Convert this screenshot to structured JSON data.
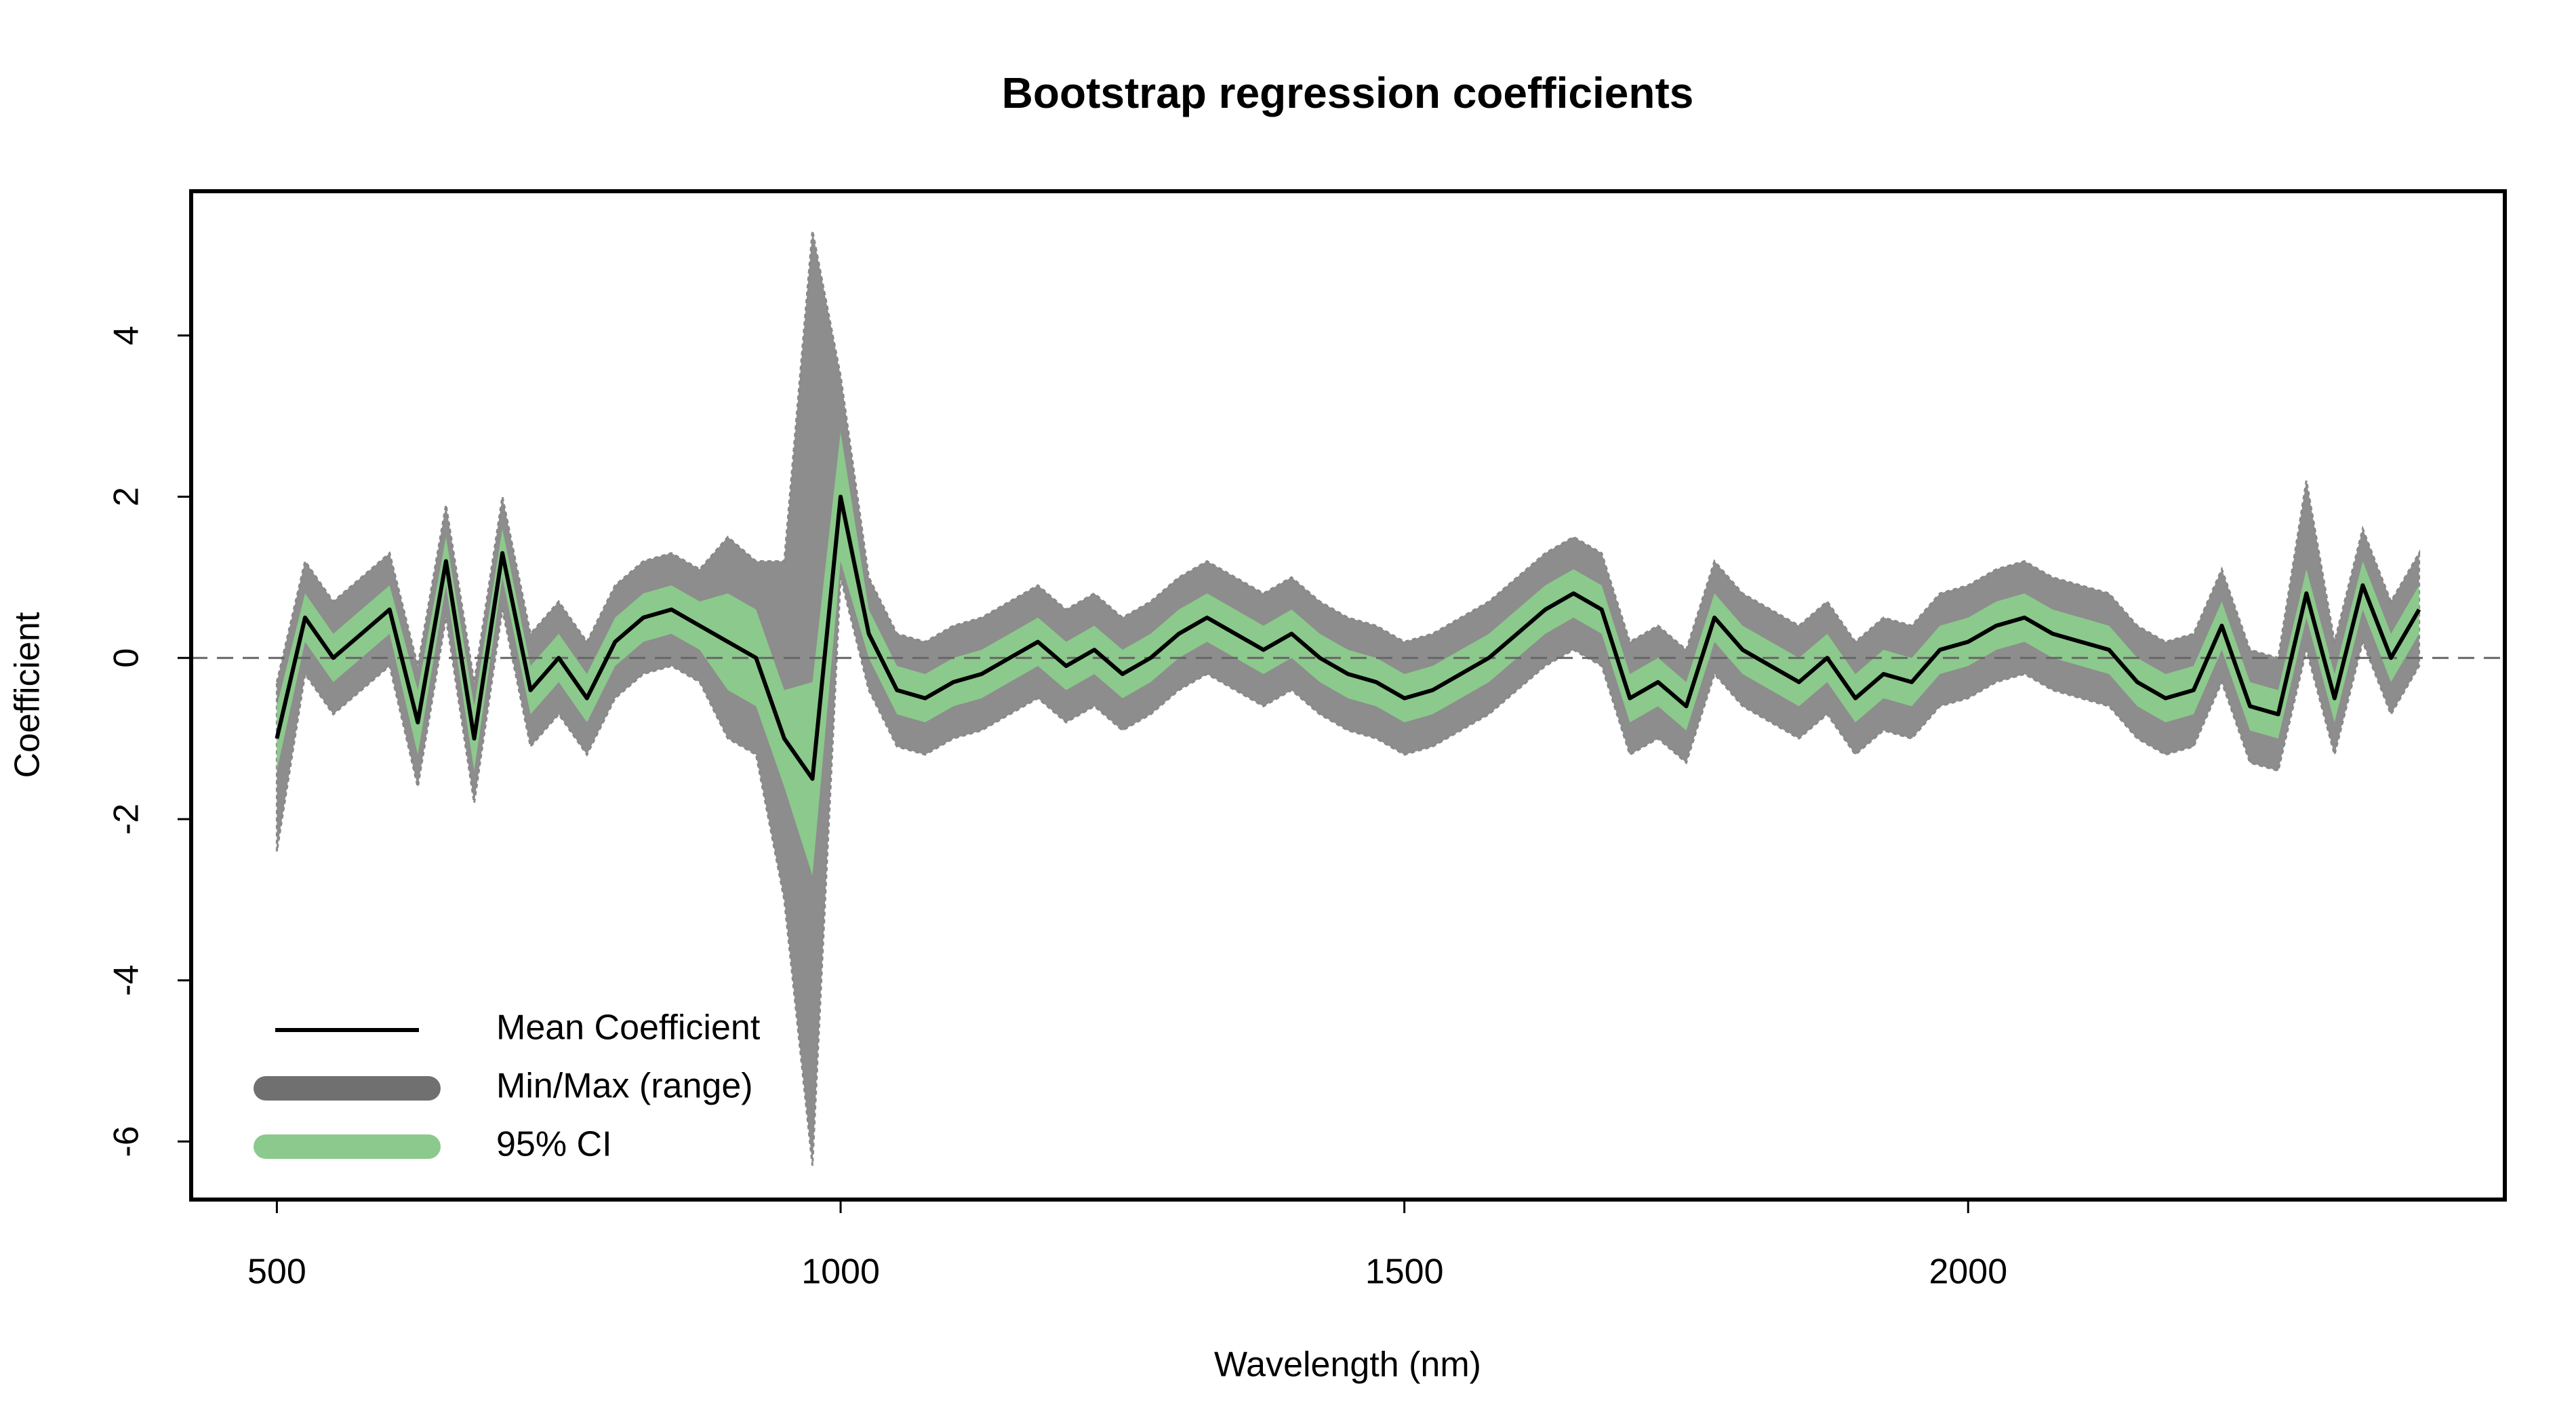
{
  "chart_data": {
    "type": "line",
    "title": "Bootstrap regression coefficients",
    "xlabel": "Wavelength (nm)",
    "ylabel": "Coefficient",
    "xlim": [
      424,
      2476
    ],
    "ylim": [
      -6.72,
      5.79
    ],
    "xticks": [
      500,
      1000,
      1500,
      2000
    ],
    "yticks": [
      -6,
      -4,
      -2,
      0,
      2,
      4
    ],
    "hline": 0,
    "legend": "bottomleft",
    "x": [
      500,
      525,
      550,
      575,
      600,
      625,
      650,
      675,
      700,
      725,
      750,
      775,
      800,
      825,
      850,
      875,
      900,
      925,
      950,
      975,
      1000,
      1025,
      1050,
      1075,
      1100,
      1125,
      1150,
      1175,
      1200,
      1225,
      1250,
      1275,
      1300,
      1325,
      1350,
      1375,
      1400,
      1425,
      1450,
      1475,
      1500,
      1525,
      1550,
      1575,
      1600,
      1625,
      1650,
      1675,
      1700,
      1725,
      1750,
      1775,
      1800,
      1825,
      1850,
      1875,
      1900,
      1925,
      1950,
      1975,
      2000,
      2025,
      2050,
      2075,
      2100,
      2125,
      2150,
      2175,
      2200,
      2225,
      2250,
      2275,
      2300,
      2325,
      2350,
      2375,
      2400
    ],
    "series": [
      {
        "name": "Mean Coefficient",
        "color": "#000000",
        "values": [
          -1.0,
          0.5,
          0.0,
          0.3,
          0.6,
          -0.8,
          1.2,
          -1.0,
          1.3,
          -0.4,
          0.0,
          -0.5,
          0.2,
          0.5,
          0.6,
          0.4,
          0.2,
          0.0,
          -1.0,
          -1.5,
          2.0,
          0.3,
          -0.4,
          -0.5,
          -0.3,
          -0.2,
          0.0,
          0.2,
          -0.1,
          0.1,
          -0.2,
          0.0,
          0.3,
          0.5,
          0.3,
          0.1,
          0.3,
          0.0,
          -0.2,
          -0.3,
          -0.5,
          -0.4,
          -0.2,
          0.0,
          0.3,
          0.6,
          0.8,
          0.6,
          -0.5,
          -0.3,
          -0.6,
          0.5,
          0.1,
          -0.1,
          -0.3,
          0.0,
          -0.5,
          -0.2,
          -0.3,
          0.1,
          0.2,
          0.4,
          0.5,
          0.3,
          0.2,
          0.1,
          -0.3,
          -0.5,
          -0.4,
          0.4,
          -0.6,
          -0.7,
          0.8,
          -0.5,
          0.9,
          0.0,
          0.6
        ]
      }
    ],
    "bands": [
      {
        "name": "Min/Max (range)",
        "color": "#707070",
        "lower": [
          -2.4,
          -0.2,
          -0.7,
          -0.4,
          -0.1,
          -1.6,
          0.5,
          -1.8,
          0.6,
          -1.1,
          -0.7,
          -1.2,
          -0.5,
          -0.2,
          -0.1,
          -0.3,
          -1.0,
          -1.2,
          -3.0,
          -6.3,
          1.0,
          -0.4,
          -1.1,
          -1.2,
          -1.0,
          -0.9,
          -0.7,
          -0.5,
          -0.8,
          -0.6,
          -0.9,
          -0.7,
          -0.4,
          -0.2,
          -0.4,
          -0.6,
          -0.4,
          -0.7,
          -0.9,
          -1.0,
          -1.2,
          -1.1,
          -0.9,
          -0.7,
          -0.4,
          -0.1,
          0.1,
          -0.1,
          -1.2,
          -1.0,
          -1.3,
          -0.2,
          -0.6,
          -0.8,
          -1.0,
          -0.7,
          -1.2,
          -0.9,
          -1.0,
          -0.6,
          -0.5,
          -0.3,
          -0.2,
          -0.4,
          -0.5,
          -0.6,
          -1.0,
          -1.2,
          -1.1,
          -0.3,
          -1.3,
          -1.4,
          0.1,
          -1.2,
          0.2,
          -0.7,
          -0.1
        ],
        "upper": [
          -0.3,
          1.2,
          0.7,
          1.0,
          1.3,
          -0.1,
          1.9,
          -0.3,
          2.0,
          0.3,
          0.7,
          0.2,
          0.9,
          1.2,
          1.3,
          1.1,
          1.5,
          1.2,
          1.2,
          5.3,
          3.5,
          1.0,
          0.3,
          0.2,
          0.4,
          0.5,
          0.7,
          0.9,
          0.6,
          0.8,
          0.5,
          0.7,
          1.0,
          1.2,
          1.0,
          0.8,
          1.0,
          0.7,
          0.5,
          0.4,
          0.2,
          0.3,
          0.5,
          0.7,
          1.0,
          1.3,
          1.5,
          1.3,
          0.2,
          0.4,
          0.1,
          1.2,
          0.8,
          0.6,
          0.4,
          0.7,
          0.2,
          0.5,
          0.4,
          0.8,
          0.9,
          1.1,
          1.2,
          1.0,
          0.9,
          0.8,
          0.4,
          0.2,
          0.3,
          1.1,
          0.1,
          0.0,
          2.2,
          0.2,
          1.6,
          0.7,
          1.3
        ]
      },
      {
        "name": "95% CI",
        "color": "#8cc98c",
        "lower": [
          -1.4,
          0.2,
          -0.3,
          0.0,
          0.3,
          -1.2,
          0.9,
          -1.4,
          1.0,
          -0.7,
          -0.3,
          -0.8,
          -0.1,
          0.2,
          0.3,
          0.1,
          -0.4,
          -0.6,
          -1.6,
          -2.7,
          1.2,
          0.0,
          -0.7,
          -0.8,
          -0.6,
          -0.5,
          -0.3,
          -0.1,
          -0.4,
          -0.2,
          -0.5,
          -0.3,
          0.0,
          0.2,
          0.0,
          -0.2,
          0.0,
          -0.3,
          -0.5,
          -0.6,
          -0.8,
          -0.7,
          -0.5,
          -0.3,
          0.0,
          0.3,
          0.5,
          0.3,
          -0.8,
          -0.6,
          -0.9,
          0.2,
          -0.2,
          -0.4,
          -0.6,
          -0.3,
          -0.8,
          -0.5,
          -0.6,
          -0.2,
          -0.1,
          0.1,
          0.2,
          0.0,
          -0.1,
          -0.2,
          -0.6,
          -0.8,
          -0.7,
          0.1,
          -0.9,
          -1.0,
          0.5,
          -0.8,
          0.6,
          -0.3,
          0.3
        ],
        "upper": [
          -0.6,
          0.8,
          0.3,
          0.6,
          0.9,
          -0.4,
          1.5,
          -0.6,
          1.6,
          -0.1,
          0.3,
          -0.2,
          0.5,
          0.8,
          0.9,
          0.7,
          0.8,
          0.6,
          -0.4,
          -0.3,
          2.8,
          0.6,
          -0.1,
          -0.2,
          0.0,
          0.1,
          0.3,
          0.5,
          0.2,
          0.4,
          0.1,
          0.3,
          0.6,
          0.8,
          0.6,
          0.4,
          0.6,
          0.3,
          0.1,
          0.0,
          -0.2,
          -0.1,
          0.1,
          0.3,
          0.6,
          0.9,
          1.1,
          0.9,
          -0.2,
          0.0,
          -0.3,
          0.8,
          0.4,
          0.2,
          0.0,
          0.3,
          -0.2,
          0.1,
          0.0,
          0.4,
          0.5,
          0.7,
          0.8,
          0.6,
          0.5,
          0.4,
          0.0,
          -0.2,
          -0.1,
          0.7,
          -0.3,
          -0.4,
          1.1,
          -0.2,
          1.2,
          0.3,
          0.9
        ]
      }
    ]
  }
}
